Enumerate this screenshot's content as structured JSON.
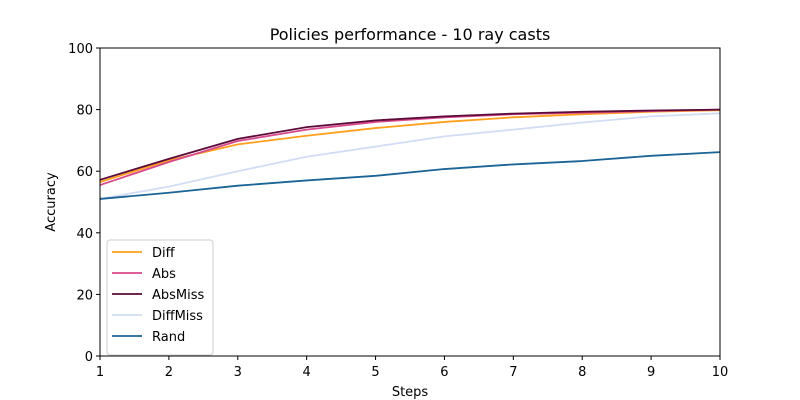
{
  "chart_data": {
    "type": "line",
    "title": "Policies performance - 10 ray casts",
    "xlabel": "Steps",
    "ylabel": "Accuracy",
    "x": [
      1,
      2,
      3,
      4,
      5,
      6,
      7,
      8,
      9,
      10
    ],
    "xlim": [
      1,
      10
    ],
    "ylim": [
      0,
      100
    ],
    "xticks": [
      1,
      2,
      3,
      4,
      5,
      6,
      7,
      8,
      9,
      10
    ],
    "yticks": [
      0,
      20,
      40,
      60,
      80,
      100
    ],
    "grid": false,
    "legend_position": "lower-left",
    "series": [
      {
        "name": "Diff",
        "color": "#ff9f1c",
        "values": [
          56.5,
          63.5,
          68.7,
          71.5,
          74.0,
          76.0,
          77.5,
          78.5,
          79.3,
          79.8
        ]
      },
      {
        "name": "Abs",
        "color": "#d94a8c",
        "values": [
          55.5,
          63.0,
          69.8,
          73.5,
          76.0,
          77.5,
          78.5,
          79.0,
          79.5,
          80.0
        ]
      },
      {
        "name": "AbsMiss",
        "color": "#5c0a3a",
        "values": [
          57.2,
          64.0,
          70.5,
          74.3,
          76.5,
          77.8,
          78.7,
          79.3,
          79.7,
          80.0
        ]
      },
      {
        "name": "DiffMiss",
        "color": "#d2dcf5",
        "values": [
          51.0,
          55.0,
          60.0,
          64.7,
          68.0,
          71.3,
          73.5,
          75.8,
          77.8,
          78.8
        ]
      },
      {
        "name": "Rand",
        "color": "#1b6496",
        "values": [
          51.0,
          53.0,
          55.3,
          57.0,
          58.5,
          60.7,
          62.2,
          63.3,
          65.0,
          66.2
        ]
      }
    ]
  }
}
